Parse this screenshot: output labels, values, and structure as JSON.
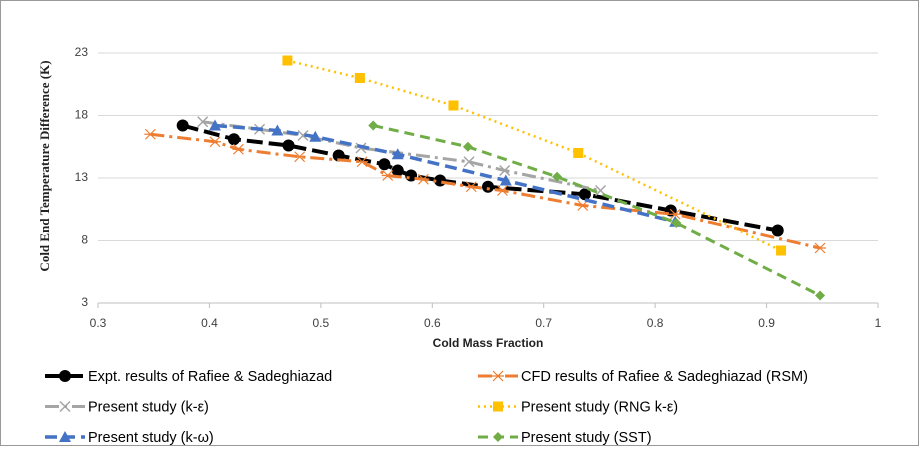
{
  "chart_data": {
    "type": "line",
    "xlabel": "Cold Mass Fraction",
    "ylabel": "Cold End Temperature Difference (K)",
    "xlim": [
      0.3,
      1
    ],
    "xticks": [
      0.3,
      0.4,
      0.5,
      0.6,
      0.7,
      0.8,
      0.9,
      1
    ],
    "ylim": [
      3,
      25
    ],
    "yticks": [
      3,
      8,
      13,
      18,
      23
    ],
    "grid": true,
    "legend": "bottom",
    "series": [
      {
        "name": "Expt. results of Rafiee & Sadeghiazad",
        "color": "#000000",
        "marker": "circle",
        "dash": "16 6",
        "width": 4,
        "x": [
          0.376,
          0.422,
          0.471,
          0.516,
          0.557,
          0.569,
          0.581,
          0.607,
          0.65,
          0.737,
          0.814,
          0.91
        ],
        "values": [
          17.2,
          16.1,
          15.6,
          14.8,
          14.1,
          13.6,
          13.2,
          12.8,
          12.3,
          11.7,
          10.4,
          8.8
        ]
      },
      {
        "name": "CFD results of Rafiee & Sadeghiazad (RSM)",
        "color": "#ed7d31",
        "marker": "asterisk",
        "dash": "14 5 3 5",
        "width": 3,
        "x": [
          0.347,
          0.405,
          0.426,
          0.481,
          0.537,
          0.56,
          0.592,
          0.635,
          0.663,
          0.735,
          0.818,
          0.948
        ],
        "values": [
          16.5,
          15.9,
          15.3,
          14.7,
          14.3,
          13.2,
          12.9,
          12.3,
          12.0,
          10.8,
          10.1,
          7.4
        ]
      },
      {
        "name": "Present study (k-ε)",
        "color": "#a5a5a5",
        "marker": "x",
        "dash": "14 5 3 5",
        "width": 3,
        "x": [
          0.394,
          0.445,
          0.484,
          0.536,
          0.633,
          0.665,
          0.751
        ],
        "values": [
          17.5,
          16.9,
          16.4,
          15.4,
          14.3,
          13.6,
          12.0
        ]
      },
      {
        "name": "Present study (RNG k-ε)",
        "color": "#ffc000",
        "marker": "square",
        "dash": "2 4",
        "width": 2.5,
        "x": [
          0.47,
          0.535,
          0.619,
          0.731,
          0.913
        ],
        "values": [
          22.4,
          21.0,
          18.8,
          15.0,
          7.2
        ]
      },
      {
        "name": "Present study (k-ω)",
        "color": "#4472c4",
        "marker": "triangle",
        "dash": "12 6",
        "width": 3.5,
        "x": [
          0.405,
          0.461,
          0.495,
          0.569,
          0.666,
          0.818
        ],
        "values": [
          17.2,
          16.8,
          16.3,
          14.9,
          12.8,
          9.5
        ]
      },
      {
        "name": "Present study (SST)",
        "color": "#70ad47",
        "marker": "diamond",
        "dash": "10 6",
        "width": 3,
        "x": [
          0.547,
          0.632,
          0.712,
          0.819,
          0.948
        ],
        "values": [
          17.2,
          15.5,
          13.1,
          9.4,
          3.6
        ]
      }
    ]
  }
}
